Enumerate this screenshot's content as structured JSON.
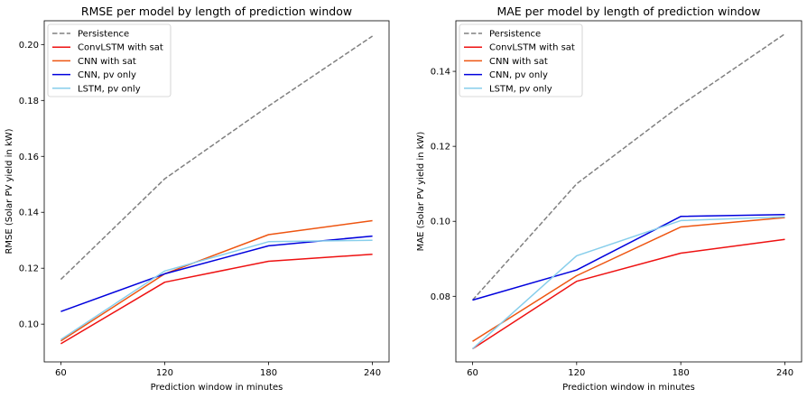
{
  "chart_data": [
    {
      "type": "line",
      "title": "RMSE per model by length of prediction window",
      "xlabel": "Prediction window in minutes",
      "ylabel": "RMSE (Solar PV yield in kW)",
      "x": [
        60,
        120,
        180,
        240
      ],
      "xticks": [
        "60",
        "120",
        "180",
        "240"
      ],
      "yticks": [
        "0.10",
        "0.12",
        "0.14",
        "0.16",
        "0.18",
        "0.20"
      ],
      "xlim": [
        50.4,
        249.6
      ],
      "ylim": [
        0.0865,
        0.2085
      ],
      "grid": false,
      "legend": "upper left",
      "series": [
        {
          "name": "Persistence",
          "color": "#808080",
          "dash": true,
          "values": [
            0.116,
            0.152,
            0.178,
            0.203
          ]
        },
        {
          "name": "ConvLSTM with sat",
          "color": "#ee1111",
          "dash": false,
          "values": [
            0.093,
            0.115,
            0.1225,
            0.125
          ]
        },
        {
          "name": "CNN with sat",
          "color": "#ee5511",
          "dash": false,
          "values": [
            0.094,
            0.118,
            0.132,
            0.137
          ]
        },
        {
          "name": "CNN, pv only",
          "color": "#0000dd",
          "dash": false,
          "values": [
            0.1045,
            0.118,
            0.128,
            0.1315
          ]
        },
        {
          "name": "LSTM, pv only",
          "color": "#87ceeb",
          "dash": false,
          "values": [
            0.0945,
            0.119,
            0.1295,
            0.13
          ]
        }
      ]
    },
    {
      "type": "line",
      "title": "MAE per model by length of prediction window",
      "xlabel": "Prediction window in minutes",
      "ylabel": "MAE (Solar PV yield in kW)",
      "x": [
        60,
        120,
        180,
        240
      ],
      "xticks": [
        "60",
        "120",
        "180",
        "240"
      ],
      "yticks": [
        "0.08",
        "0.10",
        "0.12",
        "0.14"
      ],
      "xlim": [
        50.4,
        249.6
      ],
      "ylim": [
        0.0625,
        0.1535
      ],
      "grid": false,
      "legend": "upper left",
      "series": [
        {
          "name": "Persistence",
          "color": "#808080",
          "dash": true,
          "values": [
            0.079,
            0.11,
            0.131,
            0.15
          ]
        },
        {
          "name": "ConvLSTM with sat",
          "color": "#ee1111",
          "dash": false,
          "values": [
            0.066,
            0.084,
            0.0915,
            0.0952
          ]
        },
        {
          "name": "CNN with sat",
          "color": "#ee5511",
          "dash": false,
          "values": [
            0.068,
            0.0855,
            0.0985,
            0.101
          ]
        },
        {
          "name": "CNN, pv only",
          "color": "#0000dd",
          "dash": false,
          "values": [
            0.079,
            0.087,
            0.1013,
            0.1018
          ]
        },
        {
          "name": "LSTM, pv only",
          "color": "#87ceeb",
          "dash": false,
          "values": [
            0.066,
            0.0908,
            0.1002,
            0.1012
          ]
        }
      ]
    }
  ]
}
